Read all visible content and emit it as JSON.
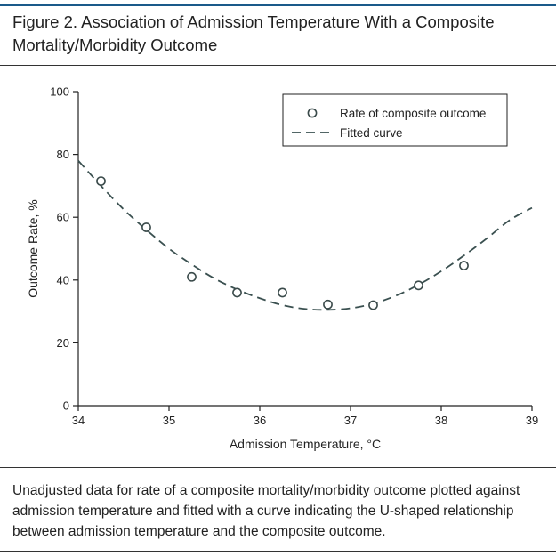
{
  "figure": {
    "title": "Figure 2. Association of Admission Temperature With a Composite Mortality/Morbidity Outcome",
    "caption": "Unadjusted data for rate of a composite mortality/morbidity outcome plotted against admission temperature and fitted with a curve indicating the U-shaped relationship between admission temperature and the composite outcome."
  },
  "chart_data": {
    "type": "scatter",
    "xlabel": "Admission Temperature, °C",
    "ylabel": "Outcome Rate, %",
    "xlim": [
      34,
      39
    ],
    "ylim": [
      0,
      100
    ],
    "x_ticks": [
      34,
      35,
      36,
      37,
      38,
      39
    ],
    "y_ticks": [
      0,
      20,
      40,
      60,
      80,
      100
    ],
    "grid": false,
    "legend_position": "top-right",
    "series": [
      {
        "name": "Rate of composite outcome",
        "kind": "points",
        "marker": "open-circle",
        "x": [
          34.25,
          34.75,
          35.25,
          35.75,
          36.25,
          36.75,
          37.25,
          37.75,
          38.25
        ],
        "y": [
          71.5,
          56.8,
          41.0,
          36.0,
          36.0,
          32.2,
          32.0,
          38.3,
          44.6
        ]
      },
      {
        "name": "Fitted curve",
        "kind": "line",
        "style": "dashed",
        "x": [
          34.0,
          34.25,
          34.5,
          34.75,
          35.0,
          35.25,
          35.5,
          35.75,
          36.0,
          36.25,
          36.5,
          36.75,
          37.0,
          37.25,
          37.5,
          37.75,
          38.0,
          38.25,
          38.5,
          38.75,
          39.0
        ],
        "y": [
          78.0,
          70.0,
          62.5,
          56.0,
          50.0,
          45.0,
          40.5,
          37.0,
          34.2,
          32.0,
          30.8,
          30.5,
          31.0,
          32.5,
          35.0,
          38.5,
          42.8,
          47.8,
          53.2,
          59.0,
          63.0
        ]
      }
    ],
    "colors": {
      "axis": "#222222",
      "marker": "#3a4a4a",
      "curve": "#3a5050"
    }
  }
}
